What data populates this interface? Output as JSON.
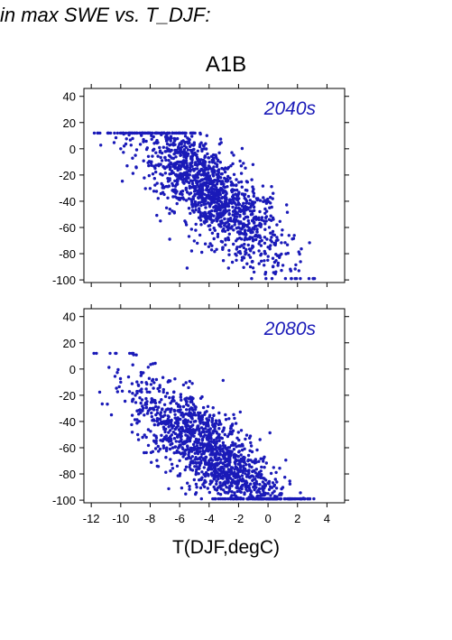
{
  "caption": "in max SWE vs. T_DJF:",
  "title": "A1B",
  "xlabel": "T(DJF,degC)",
  "colors": {
    "points": "#1a1ab8",
    "panel_label": "#1a1ab8",
    "axis": "#000000"
  },
  "chart_data": [
    {
      "type": "scatter",
      "panel_label": "2040s",
      "xlim": [
        -12.5,
        5.2
      ],
      "ylim": [
        -102,
        46
      ],
      "xticks": [
        -12,
        -10,
        -8,
        -6,
        -4,
        -2,
        0,
        2,
        4
      ],
      "yticks": [
        40,
        20,
        0,
        -20,
        -40,
        -60,
        -80,
        -100
      ],
      "show_x_tick_labels": false,
      "points": [
        [
          -5,
          -30
        ],
        [
          -4,
          -38
        ],
        [
          -3.5,
          -45
        ],
        [
          -6,
          -22
        ],
        [
          -7,
          -15
        ],
        [
          -2,
          -60
        ],
        [
          -1,
          -70
        ],
        [
          -8,
          -10
        ],
        [
          -3,
          -50
        ],
        [
          -4.5,
          -33
        ],
        [
          -5.5,
          -25
        ],
        [
          -2.5,
          -55
        ],
        [
          -6.5,
          -18
        ],
        [
          -1.5,
          -65
        ],
        [
          0,
          -75
        ],
        [
          -9,
          -5
        ],
        [
          -10,
          0
        ],
        [
          -3.8,
          -40
        ],
        [
          -4.2,
          -28
        ],
        [
          -2.2,
          -48
        ]
      ]
    },
    {
      "type": "scatter",
      "panel_label": "2080s",
      "xlim": [
        -12.5,
        5.2
      ],
      "ylim": [
        -102,
        46
      ],
      "xticks": [
        -12,
        -10,
        -8,
        -6,
        -4,
        -2,
        0,
        2,
        4
      ],
      "xtick_labels": [
        "-12",
        "-10",
        "-8",
        "-6",
        "-4",
        "-2",
        "0",
        "2",
        "4"
      ],
      "yticks": [
        40,
        20,
        0,
        -20,
        -40,
        -60,
        -80,
        -100
      ],
      "show_x_tick_labels": true,
      "points": [
        [
          -4,
          -70
        ],
        [
          -3,
          -78
        ],
        [
          -2,
          -85
        ],
        [
          -5,
          -60
        ],
        [
          -6,
          -50
        ],
        [
          -1,
          -90
        ],
        [
          0,
          -95
        ],
        [
          -7,
          -40
        ],
        [
          -8,
          -30
        ],
        [
          -3.5,
          -72
        ],
        [
          -4.5,
          -65
        ],
        [
          -2.5,
          -80
        ],
        [
          -5.5,
          -55
        ],
        [
          -1.5,
          -88
        ],
        [
          -9,
          -20
        ],
        [
          -10,
          -10
        ],
        [
          -3.2,
          -75
        ],
        [
          -4.2,
          -62
        ],
        [
          -6.5,
          -45
        ],
        [
          -2.2,
          -82
        ]
      ]
    }
  ]
}
